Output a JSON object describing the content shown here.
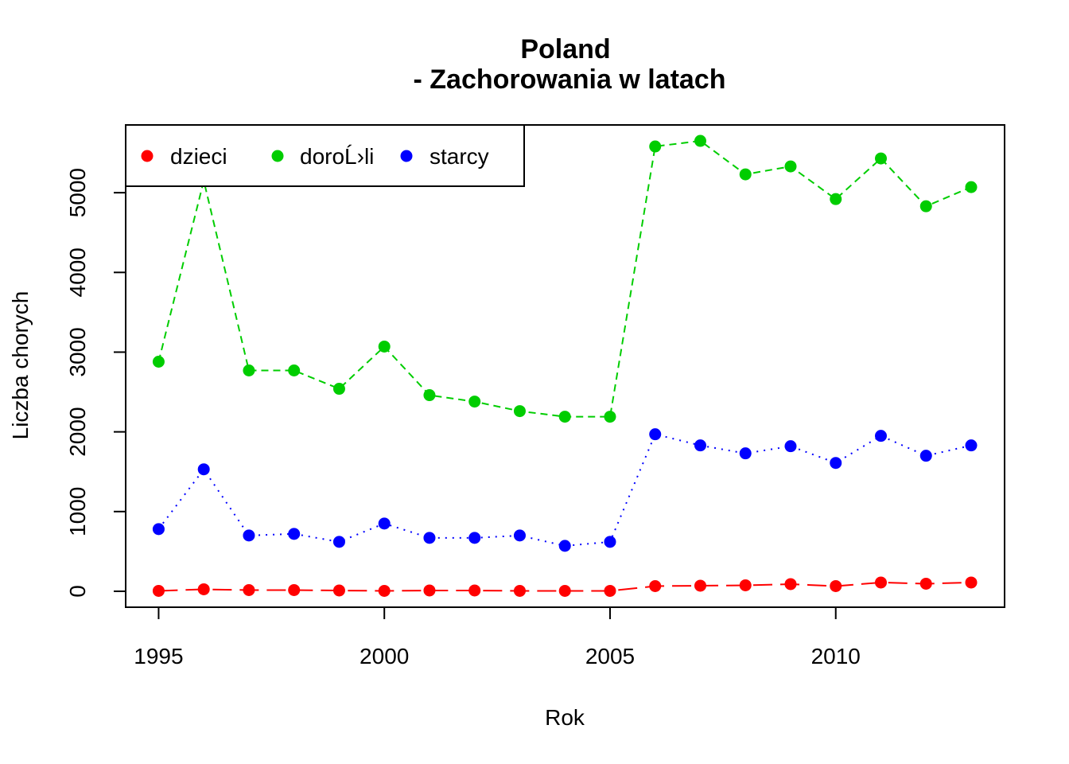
{
  "chart_data": {
    "type": "line",
    "title": "Poland",
    "subtitle": "- Zachorowania w latach",
    "xlabel": "Rok",
    "ylabel": "Liczba chorych",
    "xlim": [
      1994.27,
      2013.74
    ],
    "ylim": [
      -200,
      5850
    ],
    "x_ticks": [
      1995,
      2000,
      2005,
      2010
    ],
    "y_ticks": [
      0,
      1000,
      2000,
      3000,
      4000,
      5000
    ],
    "legend_position": "top-left",
    "x": [
      1995,
      1996,
      1997,
      1998,
      1999,
      2000,
      2001,
      2002,
      2003,
      2004,
      2005,
      2006,
      2007,
      2008,
      2009,
      2010,
      2011,
      2012,
      2013
    ],
    "series": [
      {
        "name": "dzieci",
        "color": "#ff0000",
        "line_style": "long-dash",
        "values": [
          5,
          25,
          15,
          15,
          10,
          5,
          10,
          10,
          5,
          5,
          5,
          65,
          70,
          75,
          90,
          65,
          110,
          95,
          110
        ]
      },
      {
        "name": "doroĹ›li",
        "color": "#00cd00",
        "line_style": "dashed",
        "values": [
          2880,
          5150,
          2770,
          2770,
          2540,
          3070,
          2460,
          2380,
          2260,
          2190,
          2190,
          5580,
          5650,
          5230,
          5330,
          4920,
          5430,
          4830,
          5070
        ]
      },
      {
        "name": "starcy",
        "color": "#0000ff",
        "line_style": "dotted",
        "values": [
          780,
          1530,
          700,
          720,
          620,
          850,
          670,
          670,
          700,
          570,
          620,
          1970,
          1830,
          1730,
          1820,
          1610,
          1950,
          1700,
          1830
        ]
      }
    ]
  }
}
